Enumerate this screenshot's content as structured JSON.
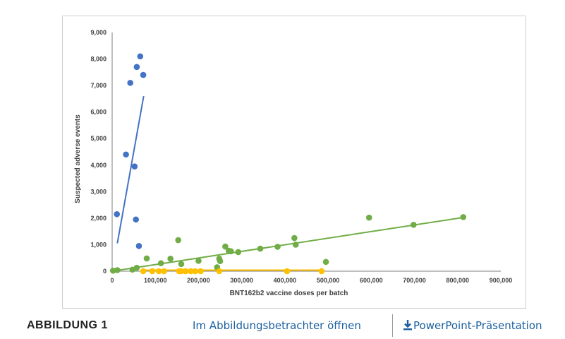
{
  "figure": {
    "label": "ABBILDUNG 1",
    "viewer_link": "Im Abbildungsbetrachter öffnen",
    "ppt_link": "PowerPoint-Präsentation",
    "ppt_icon": "download-icon"
  },
  "chart_data": {
    "type": "scatter",
    "title": "",
    "xlabel": "BNT162b2 vaccine doses per batch",
    "ylabel": "Suspected adverse events",
    "xlim": [
      0,
      900000
    ],
    "ylim": [
      0,
      9000
    ],
    "xticks": [
      0,
      100000,
      200000,
      300000,
      400000,
      500000,
      600000,
      700000,
      800000,
      900000
    ],
    "yticks": [
      0,
      1000,
      2000,
      3000,
      4000,
      5000,
      6000,
      7000,
      8000,
      9000
    ],
    "xtick_labels": [
      "0",
      "100,000",
      "200,000",
      "300,000",
      "400,000",
      "500,000",
      "600,000",
      "700,000",
      "800,000",
      "900,000"
    ],
    "ytick_labels": [
      "0",
      "1,000",
      "2,000",
      "3,000",
      "4,000",
      "5,000",
      "6,000",
      "7,000",
      "8,000",
      "9,000"
    ],
    "grid": false,
    "legend": "none",
    "series": [
      {
        "color": "#4472c4",
        "points": [
          [
            11000,
            2150
          ],
          [
            32000,
            4400
          ],
          [
            42000,
            7100
          ],
          [
            52000,
            3950
          ],
          [
            55000,
            1950
          ],
          [
            57000,
            7700
          ],
          [
            62000,
            950
          ],
          [
            65000,
            8100
          ],
          [
            72000,
            7400
          ]
        ],
        "trendline": [
          [
            12000,
            1050
          ],
          [
            73000,
            6600
          ]
        ]
      },
      {
        "color": "#70ad47",
        "points": [
          [
            2000,
            20
          ],
          [
            12000,
            40
          ],
          [
            47000,
            60
          ],
          [
            57000,
            130
          ],
          [
            80000,
            480
          ],
          [
            113000,
            300
          ],
          [
            135000,
            470
          ],
          [
            153000,
            1170
          ],
          [
            160000,
            270
          ],
          [
            200000,
            390
          ],
          [
            243000,
            150
          ],
          [
            248000,
            470
          ],
          [
            250000,
            380
          ],
          [
            262000,
            930
          ],
          [
            270000,
            770
          ],
          [
            275000,
            750
          ],
          [
            292000,
            720
          ],
          [
            343000,
            850
          ],
          [
            383000,
            920
          ],
          [
            422000,
            1250
          ],
          [
            425000,
            1000
          ],
          [
            495000,
            350
          ],
          [
            595000,
            2020
          ],
          [
            698000,
            1750
          ],
          [
            813000,
            2040
          ]
        ],
        "trendline": [
          [
            0,
            0
          ],
          [
            815000,
            2030
          ]
        ]
      },
      {
        "color": "#ffc000",
        "points": [
          [
            72000,
            0
          ],
          [
            93000,
            0
          ],
          [
            108000,
            0
          ],
          [
            120000,
            0
          ],
          [
            155000,
            0
          ],
          [
            160000,
            0
          ],
          [
            170000,
            0
          ],
          [
            182000,
            0
          ],
          [
            192000,
            0
          ],
          [
            205000,
            0
          ],
          [
            248000,
            0
          ],
          [
            405000,
            0
          ],
          [
            485000,
            0
          ]
        ],
        "trendline": [
          [
            75000,
            40
          ],
          [
            488000,
            40
          ]
        ]
      }
    ]
  }
}
